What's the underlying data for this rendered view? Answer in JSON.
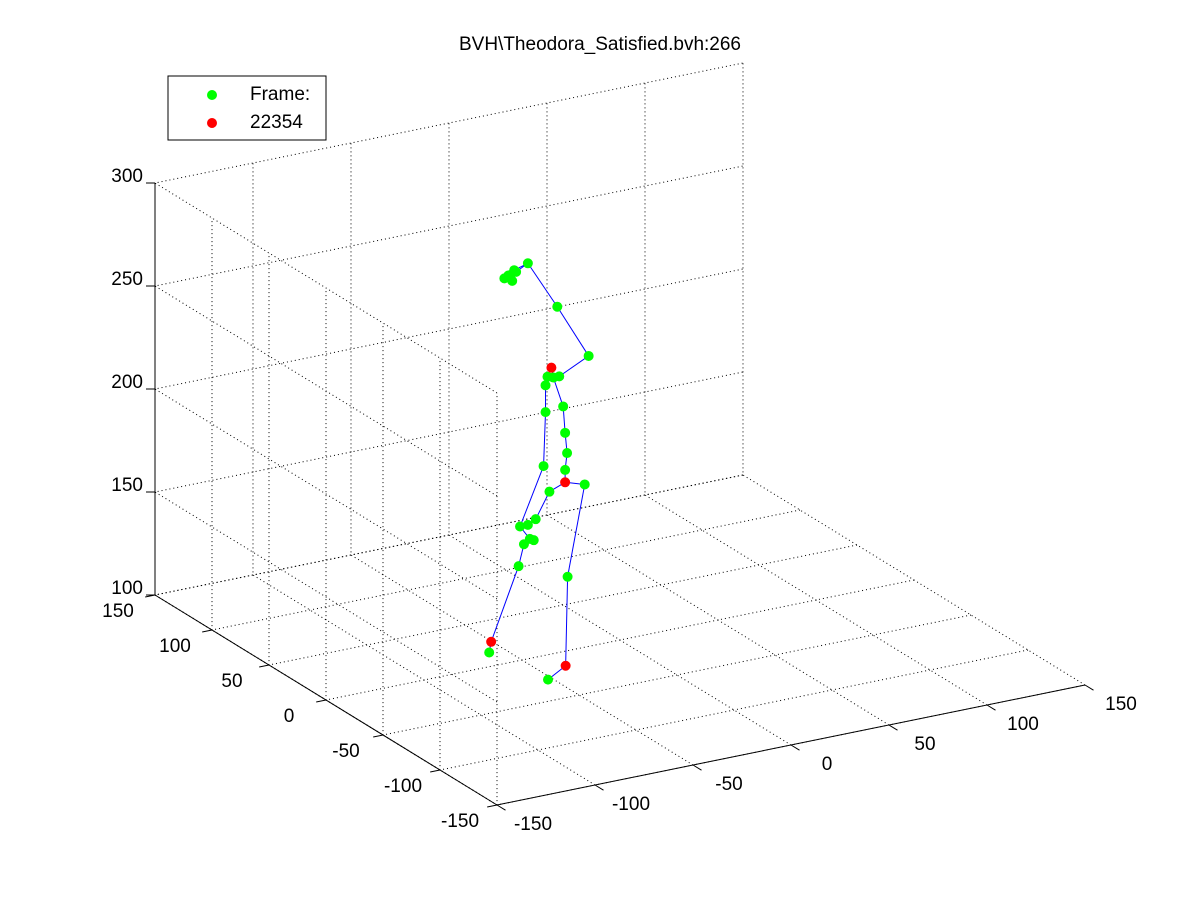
{
  "chart_data": {
    "type": "scatter3d",
    "title": "BVH\\Theodora_Satisfied.bvh:266",
    "xlim": [
      -150,
      150
    ],
    "ylim": [
      -150,
      150
    ],
    "zlim": [
      100,
      300
    ],
    "xticks": [
      -150,
      -100,
      -50,
      0,
      50,
      100,
      150
    ],
    "yticks": [
      -150,
      -100,
      -50,
      0,
      50,
      100,
      150
    ],
    "zticks": [
      100,
      150,
      200,
      250,
      300
    ],
    "grid": true,
    "legend": "upper left",
    "line_color": "#0000ff",
    "series": [
      {
        "name": "Frame:",
        "color": "#00ff00",
        "x": [
          -47,
          -53,
          -54,
          -56,
          -59,
          -55,
          -57,
          -32,
          -16,
          -31,
          -37,
          -34,
          -38,
          -29,
          -38,
          -28,
          -27,
          -39,
          -28,
          -18,
          -36,
          -43,
          -51,
          -47,
          -46,
          -49,
          -44,
          -75,
          -50,
          -90,
          -60
        ],
        "y": [
          0,
          0,
          0,
          0,
          0,
          0,
          0,
          0,
          0,
          0,
          0,
          0,
          0,
          0,
          0,
          0,
          0,
          0,
          0,
          0,
          0,
          0,
          0,
          0,
          0,
          0,
          0,
          -40,
          -40,
          -40,
          -40
        ],
        "z": [
          292,
          289,
          290,
          288,
          287,
          285,
          288,
          268,
          241,
          234,
          235,
          234,
          231,
          219,
          218,
          206,
          196,
          192,
          188,
          179,
          179,
          167,
          165,
          165,
          158,
          156,
          157,
          164,
          154,
          125,
          106
        ]
      },
      {
        "name": "22354",
        "color": "#ff0000",
        "x": [
          -35,
          -28,
          -89,
          -51
        ],
        "y": [
          0,
          0,
          -40,
          -40
        ],
        "z": [
          239,
          182,
          130,
          111
        ]
      }
    ]
  }
}
